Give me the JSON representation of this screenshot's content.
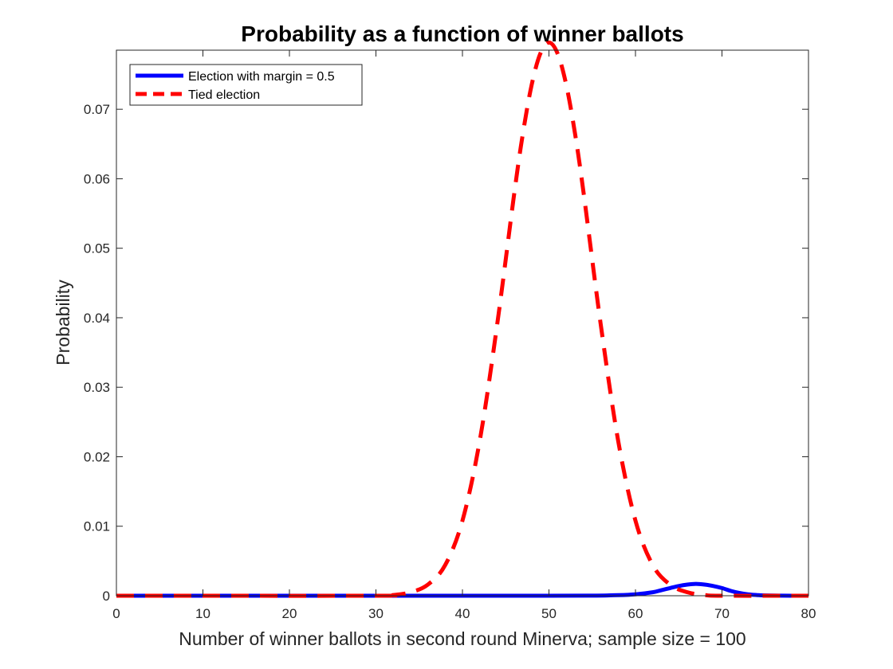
{
  "chart_data": {
    "type": "line",
    "title": "Probability as a function of winner ballots",
    "xlabel": "Number of winner ballots in second round Minerva; sample size = 100",
    "ylabel": "Probability",
    "xlim": [
      0,
      80
    ],
    "ylim": [
      0,
      0.0785
    ],
    "xticks": [
      0,
      10,
      20,
      30,
      40,
      50,
      60,
      70,
      80
    ],
    "yticks": [
      0,
      0.01,
      0.02,
      0.03,
      0.04,
      0.05,
      0.06,
      0.07
    ],
    "xtick_labels": [
      "0",
      "10",
      "20",
      "30",
      "40",
      "50",
      "60",
      "70",
      "80"
    ],
    "ytick_labels": [
      "0",
      "0.01",
      "0.02",
      "0.03",
      "0.04",
      "0.05",
      "0.06",
      "0.07"
    ],
    "grid": false,
    "legend_position": "top-left",
    "series": [
      {
        "name": "Election with margin = 0.5",
        "color": "#0000ff",
        "style": "solid",
        "x": [
          0,
          20,
          40,
          50,
          55,
          58,
          60,
          62,
          63,
          64,
          65,
          66,
          67,
          68,
          69,
          70,
          71,
          72,
          73,
          74,
          75,
          78,
          80
        ],
        "y": [
          0,
          0,
          0,
          0,
          2e-05,
          8e-05,
          0.0002,
          0.0005,
          0.0008,
          0.0011,
          0.0014,
          0.0016,
          0.0017,
          0.0016,
          0.0014,
          0.0011,
          0.0007,
          0.0004,
          0.0002,
          0.0001,
          4e-05,
          0,
          0
        ]
      },
      {
        "name": "Tied election",
        "color": "#ff0000",
        "style": "dashed",
        "x": [
          0,
          30,
          32,
          34,
          36,
          38,
          40,
          42,
          44,
          46,
          47,
          48,
          49,
          50,
          51,
          52,
          53,
          54,
          56,
          58,
          60,
          62,
          64,
          66,
          68,
          70,
          80
        ],
        "y": [
          0,
          0,
          0.0001,
          0.0005,
          0.0016,
          0.0044,
          0.0108,
          0.0223,
          0.0389,
          0.058,
          0.0666,
          0.0735,
          0.078,
          0.0796,
          0.078,
          0.0735,
          0.0666,
          0.058,
          0.0389,
          0.0223,
          0.0108,
          0.0044,
          0.0016,
          0.0005,
          0.0001,
          0,
          0
        ]
      }
    ]
  }
}
